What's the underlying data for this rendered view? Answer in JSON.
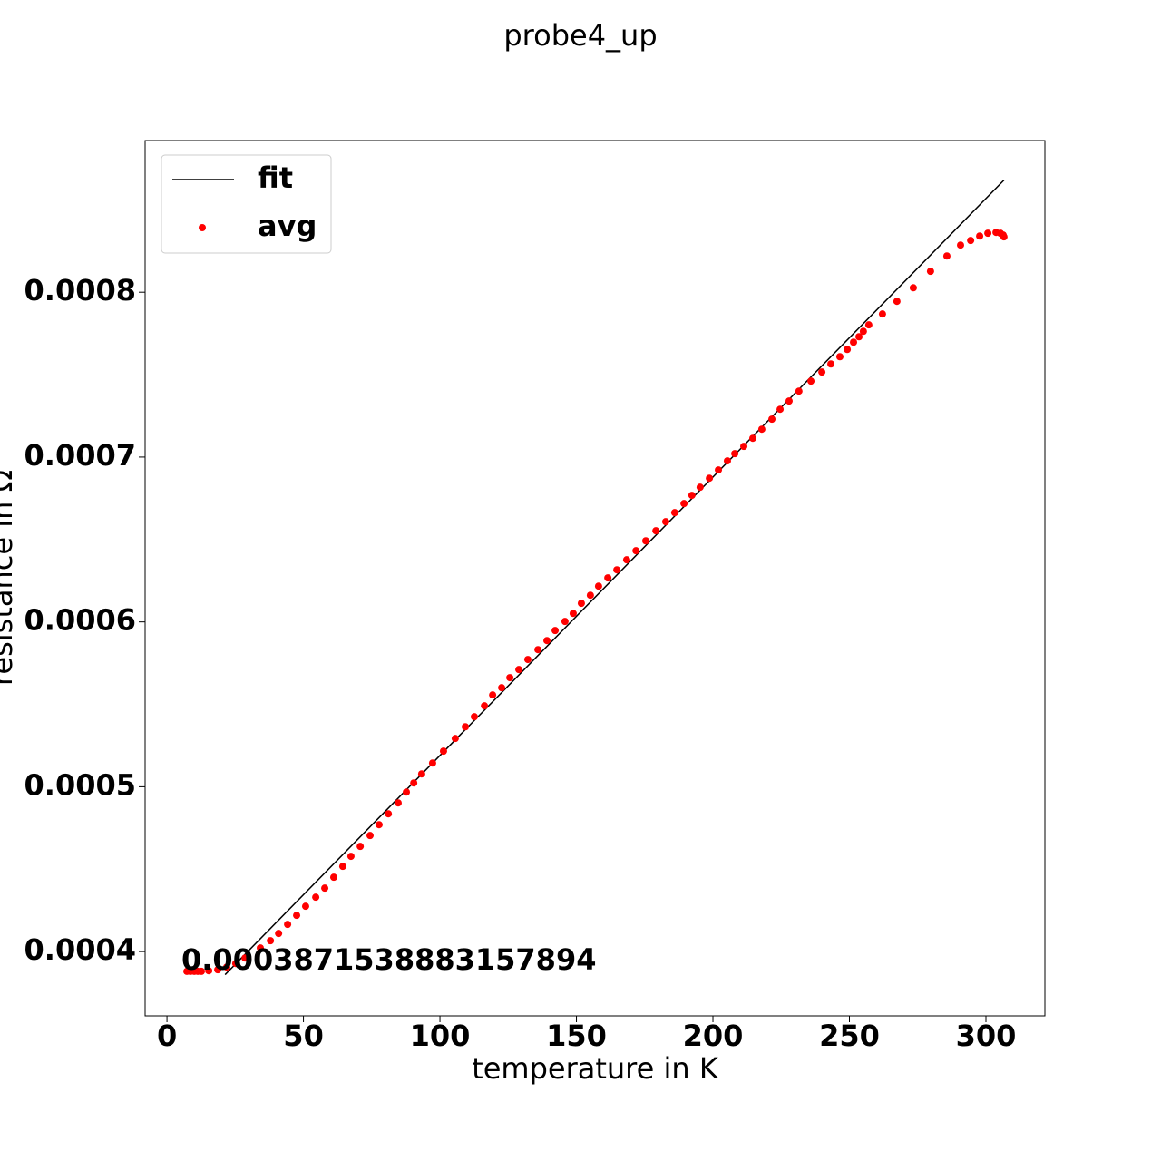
{
  "chart_data": {
    "type": "scatter",
    "title": "probe4_up",
    "x_label": "temperature in K",
    "y_label": "resistance in Ω",
    "annotation": "0.0003871538883157894",
    "xlim": [
      -8,
      321.6
    ],
    "ylim": [
      0.000361,
      0.000892
    ],
    "xticks": [
      0,
      50,
      100,
      150,
      200,
      250,
      300
    ],
    "yticks": [
      0.0004,
      0.0005,
      0.0006,
      0.0007,
      0.0008
    ],
    "legend": "upper left",
    "series": [
      {
        "name": "fit",
        "type": "line",
        "color": "#000000",
        "x": [
          21.3,
          306.6
        ],
        "values": [
          0.000386,
          0.000868
        ]
      },
      {
        "name": "avg",
        "type": "scatter",
        "color": "#ff0000",
        "x": [
          7.3,
          8.6,
          10.0,
          11.3,
          12.6,
          15.3,
          18.6,
          21.9,
          25.2,
          28.6,
          34.2,
          37.9,
          40.9,
          44.2,
          47.5,
          50.8,
          54.5,
          57.8,
          61.1,
          64.4,
          67.4,
          70.8,
          74.4,
          77.7,
          81.1,
          84.7,
          87.7,
          90.4,
          93.3,
          97.3,
          101.3,
          105.6,
          109.3,
          112.6,
          116.3,
          119.3,
          122.6,
          125.6,
          128.9,
          132.2,
          135.9,
          139.2,
          142.2,
          145.8,
          148.8,
          151.8,
          155.1,
          158.1,
          161.5,
          164.8,
          168.4,
          171.8,
          175.4,
          179.1,
          182.7,
          186.0,
          189.4,
          192.3,
          195.3,
          198.7,
          202.0,
          205.3,
          208.0,
          211.3,
          214.6,
          217.9,
          221.6,
          224.6,
          227.9,
          231.5,
          235.9,
          239.9,
          243.2,
          246.5,
          249.2,
          251.5,
          253.5,
          255.1,
          257.1,
          262.1,
          267.4,
          273.4,
          279.7,
          285.7,
          290.7,
          294.4,
          297.7,
          300.7,
          303.7,
          305.3,
          306.3,
          306.6
        ],
        "values": [
          0.000388,
          0.000388,
          0.000388,
          0.000388,
          0.000388,
          0.0003884,
          0.000389,
          0.0003906,
          0.0003928,
          0.0003961,
          0.0004022,
          0.0004066,
          0.000411,
          0.0004165,
          0.000422,
          0.0004275,
          0.000433,
          0.0004385,
          0.0004451,
          0.0004517,
          0.0004578,
          0.0004638,
          0.0004704,
          0.000477,
          0.0004836,
          0.0004902,
          0.0004968,
          0.0005023,
          0.0005078,
          0.0005144,
          0.0005216,
          0.0005293,
          0.0005364,
          0.0005425,
          0.0005491,
          0.0005557,
          0.0005601,
          0.0005662,
          0.0005711,
          0.0005772,
          0.0005832,
          0.0005887,
          0.0005948,
          0.0006003,
          0.0006052,
          0.0006113,
          0.0006162,
          0.0006217,
          0.0006267,
          0.0006316,
          0.0006377,
          0.0006432,
          0.0006492,
          0.0006553,
          0.0006608,
          0.0006663,
          0.0006718,
          0.0006768,
          0.0006817,
          0.0006872,
          0.0006922,
          0.0006977,
          0.0007021,
          0.0007065,
          0.0007114,
          0.0007169,
          0.000723,
          0.000729,
          0.000734,
          0.00074,
          0.0007461,
          0.0007516,
          0.0007565,
          0.0007609,
          0.0007653,
          0.0007697,
          0.000773,
          0.0007763,
          0.0007802,
          0.0007868,
          0.0007945,
          0.0008027,
          0.0008127,
          0.000822,
          0.0008286,
          0.0008314,
          0.0008341,
          0.0008358,
          0.0008363,
          0.0008358,
          0.0008347,
          0.0008336
        ]
      }
    ]
  }
}
